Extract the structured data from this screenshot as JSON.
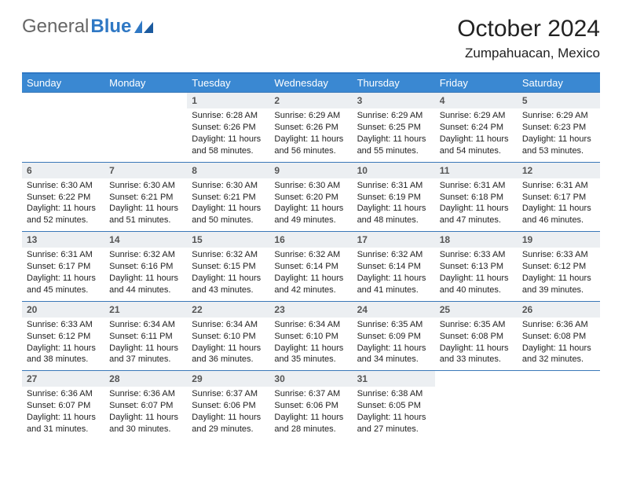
{
  "logo": {
    "text1": "General",
    "text2": "Blue"
  },
  "title": "October 2024",
  "location": "Zumpahuacan, Mexico",
  "colors": {
    "header_bg": "#3a88d2",
    "border": "#3a78b8",
    "daynum_bg": "#eceff2",
    "logo_blue": "#2f78c4"
  },
  "weekdays": [
    "Sunday",
    "Monday",
    "Tuesday",
    "Wednesday",
    "Thursday",
    "Friday",
    "Saturday"
  ],
  "weeks": [
    [
      {
        "empty": true
      },
      {
        "empty": true
      },
      {
        "num": "1",
        "sunrise": "Sunrise: 6:28 AM",
        "sunset": "Sunset: 6:26 PM",
        "daylight": "Daylight: 11 hours and 58 minutes."
      },
      {
        "num": "2",
        "sunrise": "Sunrise: 6:29 AM",
        "sunset": "Sunset: 6:26 PM",
        "daylight": "Daylight: 11 hours and 56 minutes."
      },
      {
        "num": "3",
        "sunrise": "Sunrise: 6:29 AM",
        "sunset": "Sunset: 6:25 PM",
        "daylight": "Daylight: 11 hours and 55 minutes."
      },
      {
        "num": "4",
        "sunrise": "Sunrise: 6:29 AM",
        "sunset": "Sunset: 6:24 PM",
        "daylight": "Daylight: 11 hours and 54 minutes."
      },
      {
        "num": "5",
        "sunrise": "Sunrise: 6:29 AM",
        "sunset": "Sunset: 6:23 PM",
        "daylight": "Daylight: 11 hours and 53 minutes."
      }
    ],
    [
      {
        "num": "6",
        "sunrise": "Sunrise: 6:30 AM",
        "sunset": "Sunset: 6:22 PM",
        "daylight": "Daylight: 11 hours and 52 minutes."
      },
      {
        "num": "7",
        "sunrise": "Sunrise: 6:30 AM",
        "sunset": "Sunset: 6:21 PM",
        "daylight": "Daylight: 11 hours and 51 minutes."
      },
      {
        "num": "8",
        "sunrise": "Sunrise: 6:30 AM",
        "sunset": "Sunset: 6:21 PM",
        "daylight": "Daylight: 11 hours and 50 minutes."
      },
      {
        "num": "9",
        "sunrise": "Sunrise: 6:30 AM",
        "sunset": "Sunset: 6:20 PM",
        "daylight": "Daylight: 11 hours and 49 minutes."
      },
      {
        "num": "10",
        "sunrise": "Sunrise: 6:31 AM",
        "sunset": "Sunset: 6:19 PM",
        "daylight": "Daylight: 11 hours and 48 minutes."
      },
      {
        "num": "11",
        "sunrise": "Sunrise: 6:31 AM",
        "sunset": "Sunset: 6:18 PM",
        "daylight": "Daylight: 11 hours and 47 minutes."
      },
      {
        "num": "12",
        "sunrise": "Sunrise: 6:31 AM",
        "sunset": "Sunset: 6:17 PM",
        "daylight": "Daylight: 11 hours and 46 minutes."
      }
    ],
    [
      {
        "num": "13",
        "sunrise": "Sunrise: 6:31 AM",
        "sunset": "Sunset: 6:17 PM",
        "daylight": "Daylight: 11 hours and 45 minutes."
      },
      {
        "num": "14",
        "sunrise": "Sunrise: 6:32 AM",
        "sunset": "Sunset: 6:16 PM",
        "daylight": "Daylight: 11 hours and 44 minutes."
      },
      {
        "num": "15",
        "sunrise": "Sunrise: 6:32 AM",
        "sunset": "Sunset: 6:15 PM",
        "daylight": "Daylight: 11 hours and 43 minutes."
      },
      {
        "num": "16",
        "sunrise": "Sunrise: 6:32 AM",
        "sunset": "Sunset: 6:14 PM",
        "daylight": "Daylight: 11 hours and 42 minutes."
      },
      {
        "num": "17",
        "sunrise": "Sunrise: 6:32 AM",
        "sunset": "Sunset: 6:14 PM",
        "daylight": "Daylight: 11 hours and 41 minutes."
      },
      {
        "num": "18",
        "sunrise": "Sunrise: 6:33 AM",
        "sunset": "Sunset: 6:13 PM",
        "daylight": "Daylight: 11 hours and 40 minutes."
      },
      {
        "num": "19",
        "sunrise": "Sunrise: 6:33 AM",
        "sunset": "Sunset: 6:12 PM",
        "daylight": "Daylight: 11 hours and 39 minutes."
      }
    ],
    [
      {
        "num": "20",
        "sunrise": "Sunrise: 6:33 AM",
        "sunset": "Sunset: 6:12 PM",
        "daylight": "Daylight: 11 hours and 38 minutes."
      },
      {
        "num": "21",
        "sunrise": "Sunrise: 6:34 AM",
        "sunset": "Sunset: 6:11 PM",
        "daylight": "Daylight: 11 hours and 37 minutes."
      },
      {
        "num": "22",
        "sunrise": "Sunrise: 6:34 AM",
        "sunset": "Sunset: 6:10 PM",
        "daylight": "Daylight: 11 hours and 36 minutes."
      },
      {
        "num": "23",
        "sunrise": "Sunrise: 6:34 AM",
        "sunset": "Sunset: 6:10 PM",
        "daylight": "Daylight: 11 hours and 35 minutes."
      },
      {
        "num": "24",
        "sunrise": "Sunrise: 6:35 AM",
        "sunset": "Sunset: 6:09 PM",
        "daylight": "Daylight: 11 hours and 34 minutes."
      },
      {
        "num": "25",
        "sunrise": "Sunrise: 6:35 AM",
        "sunset": "Sunset: 6:08 PM",
        "daylight": "Daylight: 11 hours and 33 minutes."
      },
      {
        "num": "26",
        "sunrise": "Sunrise: 6:36 AM",
        "sunset": "Sunset: 6:08 PM",
        "daylight": "Daylight: 11 hours and 32 minutes."
      }
    ],
    [
      {
        "num": "27",
        "sunrise": "Sunrise: 6:36 AM",
        "sunset": "Sunset: 6:07 PM",
        "daylight": "Daylight: 11 hours and 31 minutes."
      },
      {
        "num": "28",
        "sunrise": "Sunrise: 6:36 AM",
        "sunset": "Sunset: 6:07 PM",
        "daylight": "Daylight: 11 hours and 30 minutes."
      },
      {
        "num": "29",
        "sunrise": "Sunrise: 6:37 AM",
        "sunset": "Sunset: 6:06 PM",
        "daylight": "Daylight: 11 hours and 29 minutes."
      },
      {
        "num": "30",
        "sunrise": "Sunrise: 6:37 AM",
        "sunset": "Sunset: 6:06 PM",
        "daylight": "Daylight: 11 hours and 28 minutes."
      },
      {
        "num": "31",
        "sunrise": "Sunrise: 6:38 AM",
        "sunset": "Sunset: 6:05 PM",
        "daylight": "Daylight: 11 hours and 27 minutes."
      },
      {
        "empty": true
      },
      {
        "empty": true
      }
    ]
  ]
}
